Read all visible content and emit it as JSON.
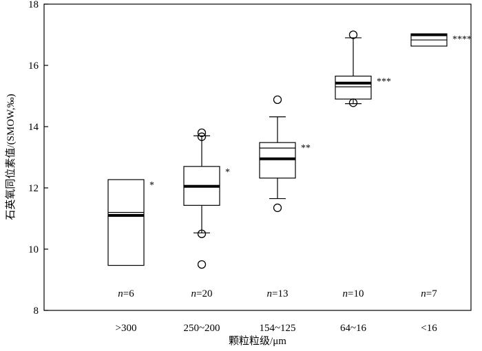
{
  "chart_data": {
    "type": "box",
    "xlabel": "颗粒粒级/μm",
    "ylabel": "石英氧同位素值/(SMOW,‰)",
    "ylim": [
      8,
      18
    ],
    "yticks": [
      8,
      10,
      12,
      14,
      16,
      18
    ],
    "grid": false,
    "categories": [
      ">300",
      "250~200",
      "154~125",
      "64~16",
      "<16"
    ],
    "boxes": [
      {
        "category": ">300",
        "q1": 9.47,
        "q3": 12.27,
        "median": 11.1,
        "mean": 11.2,
        "whisker_low": null,
        "whisker_high": null,
        "outliers": [],
        "n_label": "n=6",
        "significance": "*"
      },
      {
        "category": "250~200",
        "q1": 11.43,
        "q3": 12.7,
        "median": 12.05,
        "mean": 12.08,
        "whisker_low": 10.53,
        "whisker_high": 13.7,
        "outliers": [
          9.5,
          10.5,
          13.67,
          13.8
        ],
        "n_label": "n=20",
        "significance": "*"
      },
      {
        "category": "154~125",
        "q1": 12.32,
        "q3": 13.48,
        "median": 12.95,
        "mean": 13.3,
        "whisker_low": 11.65,
        "whisker_high": 14.32,
        "outliers": [
          11.35,
          14.88
        ],
        "n_label": "n=13",
        "significance": "**"
      },
      {
        "category": "64~16",
        "q1": 14.9,
        "q3": 15.65,
        "median": 15.42,
        "mean": 15.3,
        "whisker_low": 14.75,
        "whisker_high": 16.9,
        "outliers": [
          14.78,
          17.0
        ],
        "n_label": "n=10",
        "significance": "***"
      },
      {
        "category": "<16",
        "q1": 16.63,
        "q3": 17.03,
        "median": 17.0,
        "mean": 16.83,
        "whisker_low": null,
        "whisker_high": null,
        "outliers": [],
        "n_label": "n=7",
        "significance": "****"
      }
    ]
  }
}
